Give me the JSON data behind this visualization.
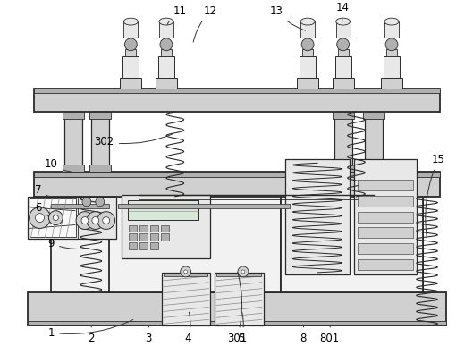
{
  "bg_color": "#ffffff",
  "line_color": "#2a2a2a",
  "label_color": "#000000",
  "fig_width": 5.29,
  "fig_height": 3.87,
  "dpi": 100,
  "gray_light": "#e8e8e8",
  "gray_mid": "#d0d0d0",
  "gray_dark": "#b0b0b0",
  "gray_very_light": "#f2f2f2",
  "hatch_color": "#888888"
}
